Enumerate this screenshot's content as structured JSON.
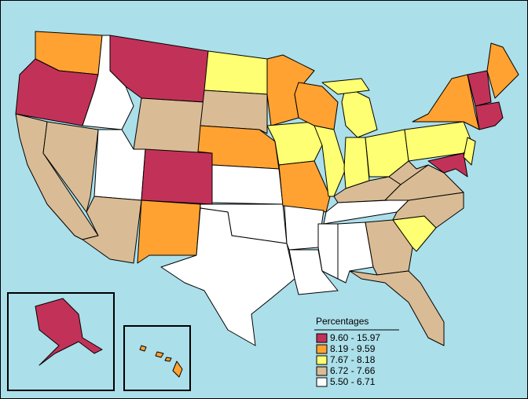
{
  "legend": {
    "title": "Percentages",
    "items": [
      {
        "label": "9.60 - 15.97",
        "color": "#c23258"
      },
      {
        "label": "8.19 - 9.59",
        "color": "#ffa232"
      },
      {
        "label": "7.67 - 8.18",
        "color": "#ffff73"
      },
      {
        "label": "6.72 - 7.66",
        "color": "#d9bc95"
      },
      {
        "label": "5.50 - 6.71",
        "color": "#ffffff"
      }
    ]
  }
}
